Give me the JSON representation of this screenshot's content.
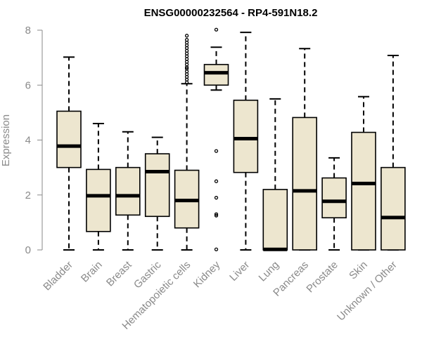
{
  "chart_data": {
    "type": "box",
    "title": "ENSG00000232564 - RP4-591N18.2",
    "xlabel": "",
    "ylabel": "Expression",
    "ylim": [
      0,
      8
    ],
    "yticks": [
      0,
      2,
      4,
      6,
      8
    ],
    "box_fill": "#ede6cf",
    "box_stroke": "#000000",
    "axis_color": "#8a8a8a",
    "categories": [
      "Bladder",
      "Brain",
      "Breast",
      "Gastric",
      "Hematopoietic cells",
      "Kidney",
      "Liver",
      "Lung",
      "Pancreas",
      "Prostate",
      "Skin",
      "Unknown / Other"
    ],
    "boxes": [
      {
        "name": "Bladder",
        "min": 0,
        "q1": 3.0,
        "median": 3.78,
        "q3": 5.05,
        "max": 7.02,
        "outliers": []
      },
      {
        "name": "Brain",
        "min": 0,
        "q1": 0.67,
        "median": 1.97,
        "q3": 2.93,
        "max": 4.6,
        "outliers": []
      },
      {
        "name": "Breast",
        "min": 0,
        "q1": 1.27,
        "median": 1.97,
        "q3": 3.0,
        "max": 4.3,
        "outliers": []
      },
      {
        "name": "Gastric",
        "min": 0,
        "q1": 1.22,
        "median": 2.85,
        "q3": 3.5,
        "max": 4.1,
        "outliers": []
      },
      {
        "name": "Hematopoietic cells",
        "min": 0,
        "q1": 0.8,
        "median": 1.8,
        "q3": 2.9,
        "max": 6.05,
        "outliers": [
          6.1,
          6.2,
          6.3,
          6.4,
          6.5,
          6.6,
          6.65,
          6.75,
          6.85,
          6.95,
          7.05,
          7.15,
          7.25,
          7.35,
          7.45,
          7.55,
          7.65,
          7.8
        ]
      },
      {
        "name": "Kidney",
        "min": 5.82,
        "q1": 6.0,
        "median": 6.45,
        "q3": 6.75,
        "max": 7.38,
        "outliers": [
          8.02,
          3.6,
          2.5,
          1.9,
          1.3,
          1.25,
          0.02
        ]
      },
      {
        "name": "Liver",
        "min": 0,
        "q1": 2.82,
        "median": 4.05,
        "q3": 5.45,
        "max": 7.92,
        "outliers": []
      },
      {
        "name": "Lung",
        "min": 0,
        "q1": 0.0,
        "median": 0.02,
        "q3": 2.2,
        "max": 5.5,
        "outliers": []
      },
      {
        "name": "Pancreas",
        "min": 0,
        "q1": 0.0,
        "median": 2.15,
        "q3": 4.82,
        "max": 7.33,
        "outliers": []
      },
      {
        "name": "Prostate",
        "min": 0,
        "q1": 1.17,
        "median": 1.77,
        "q3": 2.62,
        "max": 3.35,
        "outliers": []
      },
      {
        "name": "Skin",
        "min": 0,
        "q1": 0.0,
        "median": 2.42,
        "q3": 4.28,
        "max": 5.58,
        "outliers": []
      },
      {
        "name": "Unknown / Other",
        "min": 0,
        "q1": 0.0,
        "median": 1.18,
        "q3": 3.0,
        "max": 7.08,
        "outliers": []
      }
    ]
  }
}
